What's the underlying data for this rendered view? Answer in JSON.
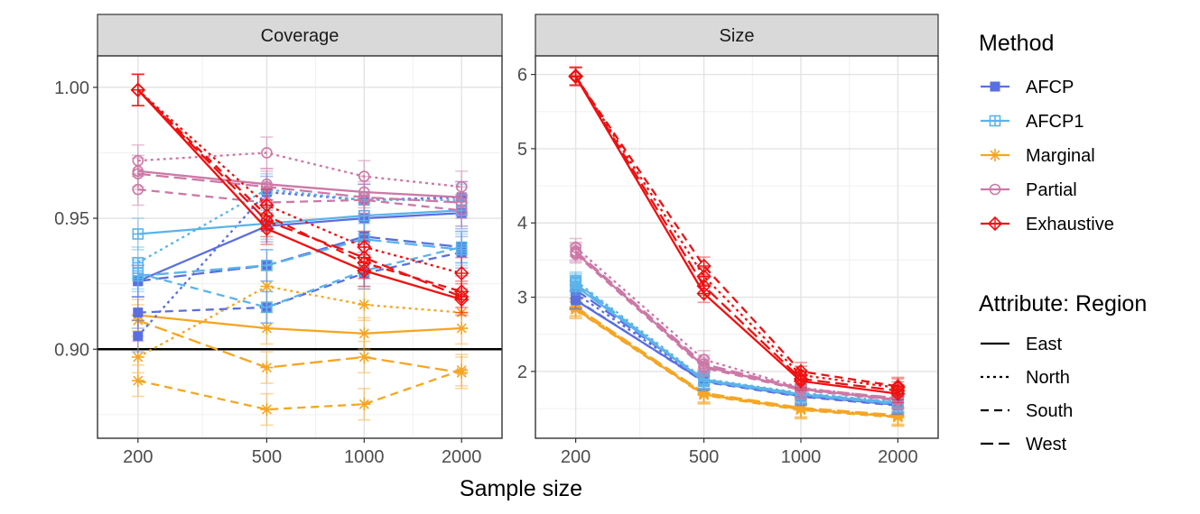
{
  "chart_data": {
    "type": "line",
    "xlabel": "Sample size",
    "x": [
      200,
      500,
      1000,
      2000
    ],
    "x_tick_labels": [
      "200",
      "500",
      "1000",
      "2000"
    ],
    "x_scale": "log",
    "methods": [
      {
        "name": "AFCP",
        "color": "#5a6fe0",
        "marker": "square-filled"
      },
      {
        "name": "AFCP1",
        "color": "#5ab4ea",
        "marker": "square-plus"
      },
      {
        "name": "Marginal",
        "color": "#f5a623",
        "marker": "asterisk"
      },
      {
        "name": "Partial",
        "color": "#cc79a7",
        "marker": "circle-open"
      },
      {
        "name": "Exhaustive",
        "color": "#ee1111",
        "marker": "diamond-plus"
      }
    ],
    "regions": [
      {
        "name": "East",
        "dash": "solid"
      },
      {
        "name": "North",
        "dash": "dotted"
      },
      {
        "name": "South",
        "dash": "dashed"
      },
      {
        "name": "West",
        "dash": "longdash"
      }
    ],
    "legend": {
      "title_method": "Method",
      "title_attribute": "Attribute: Region",
      "position": "right"
    },
    "panels": [
      {
        "title": "Coverage",
        "ylim": [
          0.866,
          1.012
        ],
        "y_ticks": [
          0.9,
          0.95,
          1.0
        ],
        "y_tick_labels": [
          "0.90",
          "0.95",
          "1.00"
        ],
        "minor_y_ticks": [
          0.875,
          0.925,
          0.975
        ],
        "hline": 0.9,
        "error": 0.006,
        "series": [
          {
            "method": "AFCP",
            "region": "East",
            "values": [
              0.926,
              0.947,
              0.95,
              0.952
            ]
          },
          {
            "method": "AFCP",
            "region": "North",
            "values": [
              0.905,
              0.96,
              0.957,
              0.958
            ]
          },
          {
            "method": "AFCP",
            "region": "South",
            "values": [
              0.914,
              0.916,
              0.929,
              0.937
            ]
          },
          {
            "method": "AFCP",
            "region": "West",
            "values": [
              0.926,
              0.932,
              0.943,
              0.939
            ]
          },
          {
            "method": "AFCP1",
            "region": "East",
            "values": [
              0.944,
              0.948,
              0.951,
              0.953
            ]
          },
          {
            "method": "AFCP1",
            "region": "North",
            "values": [
              0.933,
              0.961,
              0.957,
              0.957
            ]
          },
          {
            "method": "AFCP1",
            "region": "South",
            "values": [
              0.929,
              0.916,
              0.93,
              0.939
            ]
          },
          {
            "method": "AFCP1",
            "region": "West",
            "values": [
              0.928,
              0.932,
              0.942,
              0.938
            ]
          },
          {
            "method": "Marginal",
            "region": "East",
            "values": [
              0.913,
              0.908,
              0.906,
              0.908
            ]
          },
          {
            "method": "Marginal",
            "region": "North",
            "values": [
              0.897,
              0.924,
              0.917,
              0.914
            ]
          },
          {
            "method": "Marginal",
            "region": "South",
            "values": [
              0.888,
              0.877,
              0.879,
              0.892
            ]
          },
          {
            "method": "Marginal",
            "region": "West",
            "values": [
              0.911,
              0.893,
              0.897,
              0.891
            ]
          },
          {
            "method": "Partial",
            "region": "East",
            "values": [
              0.968,
              0.963,
              0.96,
              0.958
            ]
          },
          {
            "method": "Partial",
            "region": "North",
            "values": [
              0.972,
              0.975,
              0.966,
              0.962
            ]
          },
          {
            "method": "Partial",
            "region": "South",
            "values": [
              0.961,
              0.956,
              0.957,
              0.953
            ]
          },
          {
            "method": "Partial",
            "region": "West",
            "values": [
              0.967,
              0.962,
              0.958,
              0.956
            ]
          },
          {
            "method": "Exhaustive",
            "region": "East",
            "values": [
              0.999,
              0.946,
              0.93,
              0.919
            ]
          },
          {
            "method": "Exhaustive",
            "region": "North",
            "values": [
              0.999,
              0.955,
              0.939,
              0.929
            ]
          },
          {
            "method": "Exhaustive",
            "region": "South",
            "values": [
              0.999,
              0.951,
              0.933,
              0.922
            ]
          },
          {
            "method": "Exhaustive",
            "region": "West",
            "values": [
              0.999,
              0.949,
              0.935,
              0.92
            ]
          }
        ]
      },
      {
        "title": "Size",
        "ylim": [
          1.1,
          6.25
        ],
        "y_ticks": [
          2,
          3,
          4,
          5,
          6
        ],
        "y_tick_labels": [
          "2",
          "3",
          "4",
          "5",
          "6"
        ],
        "minor_y_ticks": [
          1.5,
          2.5,
          3.5,
          4.5,
          5.5
        ],
        "hline": null,
        "error": 0.12,
        "series": [
          {
            "method": "AFCP",
            "region": "East",
            "values": [
              2.96,
              1.87,
              1.67,
              1.55
            ]
          },
          {
            "method": "AFCP",
            "region": "North",
            "values": [
              3.05,
              1.88,
              1.68,
              1.56
            ]
          },
          {
            "method": "AFCP",
            "region": "South",
            "values": [
              2.97,
              1.86,
              1.66,
              1.54
            ]
          },
          {
            "method": "AFCP",
            "region": "West",
            "values": [
              3.1,
              1.89,
              1.69,
              1.57
            ]
          },
          {
            "method": "AFCP1",
            "region": "East",
            "values": [
              3.15,
              1.88,
              1.69,
              1.57
            ]
          },
          {
            "method": "AFCP1",
            "region": "North",
            "values": [
              3.22,
              1.9,
              1.71,
              1.59
            ]
          },
          {
            "method": "AFCP1",
            "region": "South",
            "values": [
              3.2,
              1.87,
              1.68,
              1.56
            ]
          },
          {
            "method": "AFCP1",
            "region": "West",
            "values": [
              3.18,
              1.89,
              1.7,
              1.58
            ]
          },
          {
            "method": "Marginal",
            "region": "East",
            "values": [
              2.84,
              1.69,
              1.49,
              1.39
            ]
          },
          {
            "method": "Marginal",
            "region": "North",
            "values": [
              2.86,
              1.7,
              1.5,
              1.4
            ]
          },
          {
            "method": "Marginal",
            "region": "South",
            "values": [
              2.83,
              1.68,
              1.48,
              1.38
            ]
          },
          {
            "method": "Marginal",
            "region": "West",
            "values": [
              2.87,
              1.71,
              1.51,
              1.41
            ]
          },
          {
            "method": "Partial",
            "region": "East",
            "values": [
              3.6,
              2.07,
              1.76,
              1.62
            ]
          },
          {
            "method": "Partial",
            "region": "North",
            "values": [
              3.67,
              2.16,
              1.78,
              1.63
            ]
          },
          {
            "method": "Partial",
            "region": "South",
            "values": [
              3.58,
              2.05,
              1.75,
              1.61
            ]
          },
          {
            "method": "Partial",
            "region": "West",
            "values": [
              3.62,
              2.1,
              1.77,
              1.64
            ]
          },
          {
            "method": "Exhaustive",
            "region": "East",
            "values": [
              5.97,
              3.05,
              1.87,
              1.7
            ]
          },
          {
            "method": "Exhaustive",
            "region": "North",
            "values": [
              5.98,
              3.28,
              1.95,
              1.78
            ]
          },
          {
            "method": "Exhaustive",
            "region": "South",
            "values": [
              5.97,
              3.42,
              2.0,
              1.8
            ]
          },
          {
            "method": "Exhaustive",
            "region": "West",
            "values": [
              5.98,
              3.15,
              1.9,
              1.74
            ]
          }
        ]
      }
    ]
  }
}
